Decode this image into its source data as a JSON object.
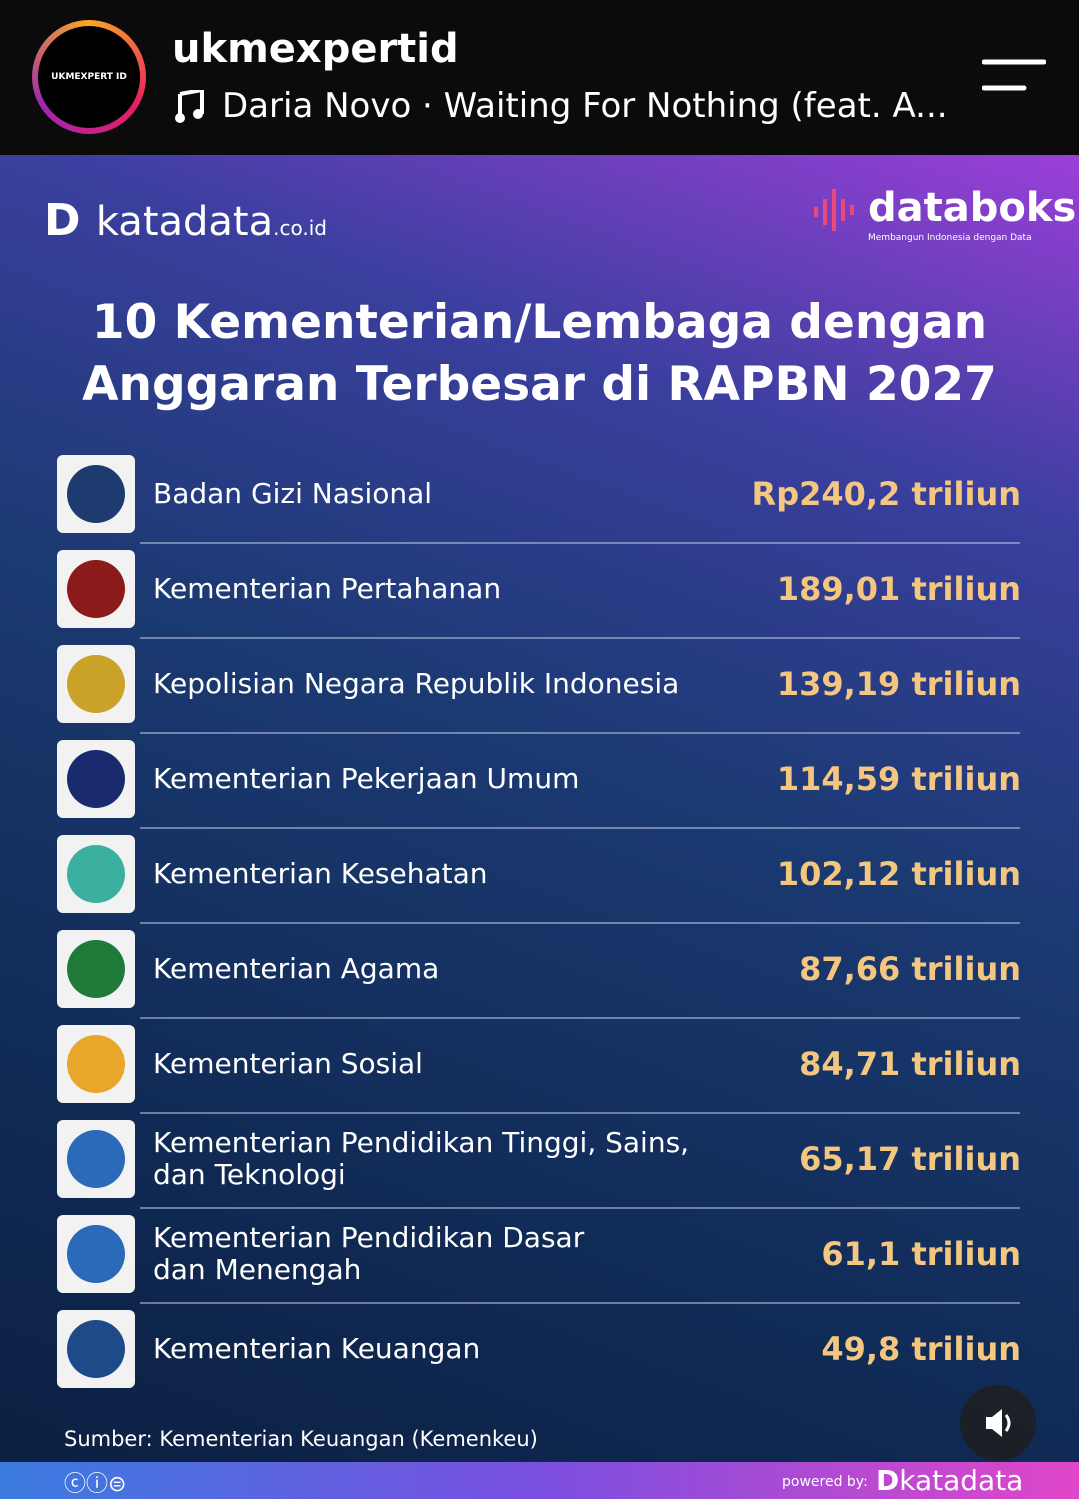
{
  "header": {
    "username": "ukmexpertid",
    "avatar_text": "UKMEXPERT ID",
    "music": "Daria Novo · Waiting For Nothing (feat. A..."
  },
  "infographic": {
    "brand": "katadata",
    "brand_suffix": ".co.id",
    "partner": "databoks",
    "partner_tagline": "Membangun Indonesia dengan Data",
    "title": [
      "10 Kementerian/Lembaga dengan",
      "Anggaran Terbesar di RAPBN 2027"
    ],
    "rows": [
      {
        "name": [
          "Badan Gizi Nasional"
        ],
        "value": "Rp240,2 triliun"
      },
      {
        "name": [
          "Kementerian Pertahanan"
        ],
        "value": "189,01 triliun"
      },
      {
        "name": [
          "Kepolisian Negara Republik Indonesia"
        ],
        "value": "139,19 triliun"
      },
      {
        "name": [
          "Kementerian Pekerjaan Umum"
        ],
        "value": "114,59 triliun"
      },
      {
        "name": [
          "Kementerian Kesehatan"
        ],
        "value": "102,12 triliun"
      },
      {
        "name": [
          "Kementerian Agama"
        ],
        "value": "87,66 triliun"
      },
      {
        "name": [
          "Kementerian Sosial"
        ],
        "value": "84,71 triliun"
      },
      {
        "name": [
          "Kementerian Pendidikan Tinggi, Sains,",
          "dan Teknologi"
        ],
        "value": "65,17 triliun"
      },
      {
        "name": [
          "Kementerian Pendidikan Dasar",
          "dan Menengah"
        ],
        "value": "61,1 triliun"
      },
      {
        "name": [
          "Kementerian Keuangan"
        ],
        "value": "49,8 triliun"
      }
    ],
    "source": "Sumber: Kementerian Keuangan (Kemenkeu)",
    "powered_by": "powered by:",
    "footer_brand": "katadata"
  }
}
